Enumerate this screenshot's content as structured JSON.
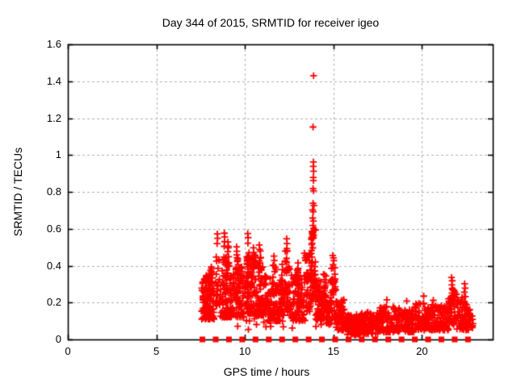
{
  "chart_data": {
    "type": "scatter",
    "title": "Day 344 of 2015, SRMTID for receiver igeo",
    "xlabel": "GPS time / hours",
    "ylabel": "SRMTID / TECUs",
    "xlim": [
      0,
      24
    ],
    "ylim": [
      0,
      1.6
    ],
    "xticks": {
      "values": [
        0,
        5,
        10,
        15,
        20
      ],
      "labels": [
        "0",
        "5",
        "10",
        "15",
        "20"
      ]
    },
    "yticks": {
      "values": [
        0,
        0.2,
        0.4,
        0.6,
        0.8,
        1.0,
        1.2,
        1.4,
        1.6
      ],
      "labels": [
        "0",
        "0.2",
        "0.4",
        "0.6",
        "0.8",
        "1",
        "1.2",
        "1.4",
        "1.6"
      ]
    },
    "grid": true,
    "legend": "none",
    "colors": {
      "marker": "#ff0000",
      "grid": "#b0b0b0",
      "border": "#000000",
      "background": "#ffffff",
      "text": "#000000"
    },
    "series": [
      {
        "name": "srmtid-plus-markers",
        "marker": "plus",
        "seed": 12345,
        "clusters_format": [
          "x_start",
          "x_end",
          "y_min",
          "y_max",
          "count",
          "bottom_bias"
        ],
        "clusters": [
          [
            7.55,
            8.25,
            0.11,
            0.36,
            110,
            1.6
          ],
          [
            7.95,
            8.15,
            0.3,
            0.43,
            10,
            1
          ],
          [
            8.3,
            8.6,
            0.18,
            0.5,
            28,
            1.6
          ],
          [
            8.6,
            9.25,
            0.12,
            0.42,
            90,
            1.5
          ],
          [
            8.75,
            8.95,
            0.4,
            0.5,
            8,
            1
          ],
          [
            9.0,
            9.1,
            0.38,
            0.5,
            6,
            1
          ],
          [
            9.3,
            9.95,
            0.12,
            0.41,
            80,
            1.5
          ],
          [
            9.5,
            9.62,
            0.33,
            0.46,
            7,
            1
          ],
          [
            10.0,
            10.6,
            0.14,
            0.45,
            85,
            1.5
          ],
          [
            10.1,
            10.25,
            0.38,
            0.5,
            8,
            1
          ],
          [
            10.45,
            10.58,
            0.36,
            0.46,
            7,
            1
          ],
          [
            10.6,
            11.25,
            0.13,
            0.42,
            85,
            1.5
          ],
          [
            10.75,
            10.9,
            0.36,
            0.48,
            8,
            1
          ],
          [
            11.25,
            12.0,
            0.1,
            0.33,
            80,
            1.4
          ],
          [
            11.5,
            11.8,
            0.28,
            0.42,
            10,
            1
          ],
          [
            12.0,
            12.6,
            0.13,
            0.42,
            70,
            1.5
          ],
          [
            12.25,
            12.45,
            0.36,
            0.48,
            8,
            1
          ],
          [
            12.6,
            13.35,
            0.1,
            0.35,
            85,
            1.4
          ],
          [
            12.95,
            13.1,
            0.28,
            0.4,
            8,
            1
          ],
          [
            13.35,
            13.75,
            0.15,
            0.48,
            55,
            1.3
          ],
          [
            13.75,
            14.0,
            0.22,
            0.6,
            50,
            1.2
          ],
          [
            14.0,
            14.55,
            0.1,
            0.33,
            70,
            1.5
          ],
          [
            14.35,
            14.6,
            0.22,
            0.36,
            14,
            1.2
          ],
          [
            14.55,
            14.85,
            0.08,
            0.22,
            28,
            1.3
          ],
          [
            14.85,
            15.15,
            0.1,
            0.4,
            38,
            1.2
          ],
          [
            15.15,
            15.7,
            0.05,
            0.22,
            55,
            1.5
          ],
          [
            15.7,
            16.6,
            0.025,
            0.135,
            95,
            1.3
          ],
          [
            16.6,
            17.6,
            0.03,
            0.15,
            100,
            1.3
          ],
          [
            17.6,
            18.5,
            0.04,
            0.18,
            90,
            1.3
          ],
          [
            18.5,
            19.6,
            0.04,
            0.17,
            100,
            1.3
          ],
          [
            19.6,
            20.5,
            0.05,
            0.2,
            85,
            1.3
          ],
          [
            20.5,
            21.5,
            0.05,
            0.19,
            95,
            1.3
          ],
          [
            21.5,
            21.95,
            0.08,
            0.28,
            45,
            1.3
          ],
          [
            21.95,
            22.55,
            0.05,
            0.23,
            55,
            1.3
          ],
          [
            22.55,
            22.9,
            0.05,
            0.17,
            30,
            1.3
          ],
          [
            9.5,
            14.5,
            0.05,
            0.12,
            20,
            1
          ]
        ],
        "outliers": [
          [
            13.88,
            1.43
          ],
          [
            13.85,
            1.152
          ],
          [
            13.87,
            0.962
          ],
          [
            13.86,
            0.938
          ],
          [
            13.88,
            0.912
          ],
          [
            13.86,
            0.878
          ],
          [
            13.87,
            0.862
          ],
          [
            13.85,
            0.818
          ],
          [
            13.88,
            0.806
          ],
          [
            13.85,
            0.738
          ],
          [
            13.9,
            0.726
          ],
          [
            13.82,
            0.702
          ],
          [
            13.86,
            0.692
          ],
          [
            13.83,
            0.658
          ],
          [
            13.87,
            0.642
          ],
          [
            13.84,
            0.618
          ],
          [
            13.88,
            0.602
          ],
          [
            13.86,
            0.586
          ],
          [
            13.89,
            0.565
          ],
          [
            13.84,
            0.548
          ],
          [
            8.44,
            0.572
          ],
          [
            8.46,
            0.548
          ],
          [
            8.43,
            0.52
          ],
          [
            8.84,
            0.576
          ],
          [
            8.86,
            0.556
          ],
          [
            8.85,
            0.53
          ],
          [
            8.83,
            0.505
          ],
          [
            9.04,
            0.528
          ],
          [
            9.06,
            0.505
          ],
          [
            9.53,
            0.502
          ],
          [
            9.55,
            0.478
          ],
          [
            10.16,
            0.574
          ],
          [
            10.18,
            0.552
          ],
          [
            10.17,
            0.522
          ],
          [
            10.48,
            0.497
          ],
          [
            10.5,
            0.47
          ],
          [
            10.81,
            0.512
          ],
          [
            10.83,
            0.488
          ],
          [
            11.64,
            0.452
          ],
          [
            11.66,
            0.428
          ],
          [
            12.36,
            0.546
          ],
          [
            12.38,
            0.52
          ],
          [
            12.37,
            0.492
          ],
          [
            13.0,
            0.415
          ],
          [
            14.96,
            0.455
          ],
          [
            15.0,
            0.442
          ],
          [
            15.03,
            0.428
          ],
          [
            14.98,
            0.405
          ],
          [
            18.02,
            0.215
          ],
          [
            19.14,
            0.208
          ],
          [
            20.1,
            0.235
          ],
          [
            20.64,
            0.212
          ],
          [
            21.67,
            0.336
          ],
          [
            21.71,
            0.318
          ],
          [
            21.69,
            0.296
          ],
          [
            21.73,
            0.272
          ],
          [
            21.7,
            0.252
          ],
          [
            22.41,
            0.302
          ],
          [
            22.44,
            0.278
          ],
          [
            22.39,
            0.256
          ],
          [
            22.46,
            0.232
          ]
        ]
      },
      {
        "name": "baseline-squares",
        "marker": "square",
        "y": 0,
        "x": [
          7.6,
          8.35,
          9.1,
          9.85,
          10.6,
          11.35,
          12.1,
          12.85,
          13.6,
          14.35,
          15.1,
          15.85,
          16.6,
          17.35,
          18.1,
          18.85,
          19.6,
          20.35,
          21.1,
          21.85,
          22.6
        ]
      }
    ]
  }
}
